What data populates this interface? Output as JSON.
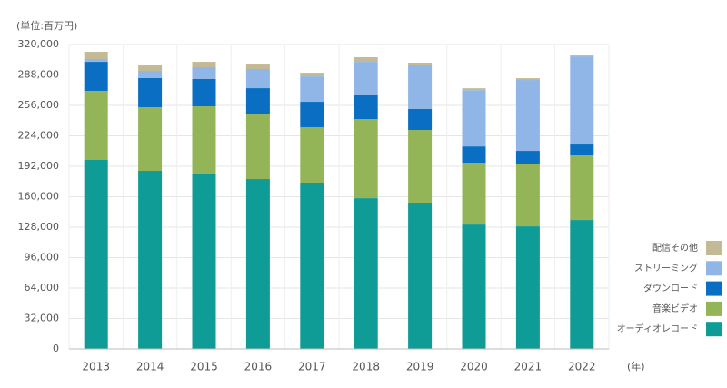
{
  "chart_data": {
    "type": "stacked-bar",
    "unit_label": "(単位:百万円)",
    "x_label": "(年)",
    "categories": [
      "2013",
      "2014",
      "2015",
      "2016",
      "2017",
      "2018",
      "2019",
      "2020",
      "2021",
      "2022"
    ],
    "series": [
      {
        "name": "オーディオレコード",
        "color": "#0f9b96",
        "values": [
          198700,
          187200,
          183400,
          178600,
          174800,
          158500,
          153800,
          130800,
          128900,
          135600
        ]
      },
      {
        "name": "音楽ビデオ",
        "color": "#93b558",
        "values": [
          72600,
          66900,
          71600,
          67800,
          58300,
          83100,
          76400,
          64900,
          65900,
          67800
        ]
      },
      {
        "name": "ダウンロード",
        "color": "#0a6fc2",
        "values": [
          30500,
          30600,
          28700,
          27700,
          26700,
          25800,
          22000,
          17200,
          13400,
          11500
        ]
      },
      {
        "name": "ストリーミング",
        "color": "#8fb6e6",
        "values": [
          2900,
          7600,
          12400,
          20100,
          26700,
          34400,
          46800,
          59200,
          74500,
          92600
        ]
      },
      {
        "name": "配信その他",
        "color": "#c3b994",
        "values": [
          7600,
          5700,
          5700,
          5700,
          3800,
          4800,
          1900,
          1900,
          1900,
          1000
        ]
      }
    ],
    "ylim": [
      0,
      320000
    ],
    "yticks": [
      0,
      {
        "value": 32000,
        "label": "32,000"
      },
      {
        "value": 64000,
        "label": "64,000"
      },
      {
        "value": 96000,
        "label": "96,000"
      },
      {
        "value": 128000,
        "label": "128,000"
      },
      {
        "value": 160000,
        "label": "160,000"
      },
      {
        "value": 192000,
        "label": "192,000"
      },
      {
        "value": 224000,
        "label": "224,000"
      },
      {
        "value": 256000,
        "label": "256,000"
      },
      {
        "value": 288000,
        "label": "288,000"
      },
      {
        "value": 320000,
        "label": "320,000"
      }
    ],
    "grid": true,
    "legend": "right"
  }
}
